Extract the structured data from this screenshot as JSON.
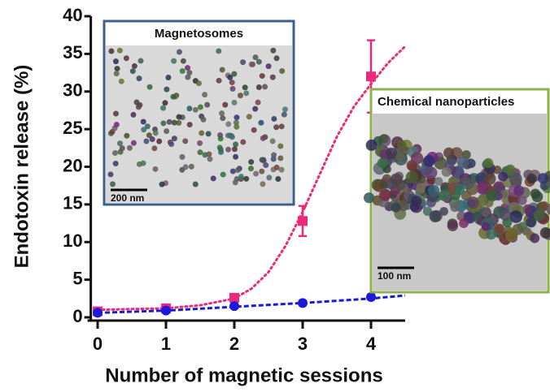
{
  "chart_data": {
    "type": "scatter",
    "x_label": "Number of magnetic sessions",
    "y_label": "Endotoxin release (%)",
    "categories": [
      0,
      1,
      2,
      3,
      4
    ],
    "xlim": [
      -0.1,
      4.5
    ],
    "xticks": [
      0,
      1,
      2,
      3,
      4
    ],
    "ylim": [
      0,
      40
    ],
    "yticks": [
      0,
      5,
      10,
      15,
      20,
      25,
      30,
      35,
      40
    ],
    "series": [
      {
        "color": "#ec2a7c",
        "marker": "square",
        "values": [
          0.8,
          1.2,
          2.6,
          12.8,
          32
        ],
        "errors": [
          0.3,
          0.3,
          0.5,
          2,
          4.8
        ]
      },
      {
        "color": "#1a1ad8",
        "marker": "circle",
        "values": [
          0.6,
          0.9,
          1.5,
          1.9,
          2.7
        ],
        "errors": [
          0.2,
          0.2,
          0.2,
          0.3,
          0.3
        ]
      }
    ],
    "fits": [
      {
        "color": "#ec2a7c",
        "style": "dotted",
        "x": [
          0,
          0.5,
          1,
          1.5,
          2,
          2.25,
          2.5,
          2.75,
          3,
          3.25,
          3.5,
          3.75,
          4,
          4.25,
          4.5
        ],
        "values": [
          1,
          1.1,
          1.2,
          1.6,
          2.5,
          3.8,
          6,
          9.5,
          14,
          19,
          24,
          28,
          31,
          33.8,
          36
        ]
      },
      {
        "color": "#1a1ad8",
        "style": "dashed",
        "x": [
          0,
          1,
          2,
          3,
          4,
          4.5
        ],
        "values": [
          0.6,
          0.9,
          1.4,
          1.9,
          2.5,
          2.9
        ]
      }
    ],
    "insets": [
      {
        "title": "Magnetosomes",
        "scale": "200 nm",
        "border": "#3d5f8f"
      },
      {
        "title": "Chemical nanoparticles",
        "scale": "100 nm",
        "border": "#8fb04c"
      }
    ]
  }
}
